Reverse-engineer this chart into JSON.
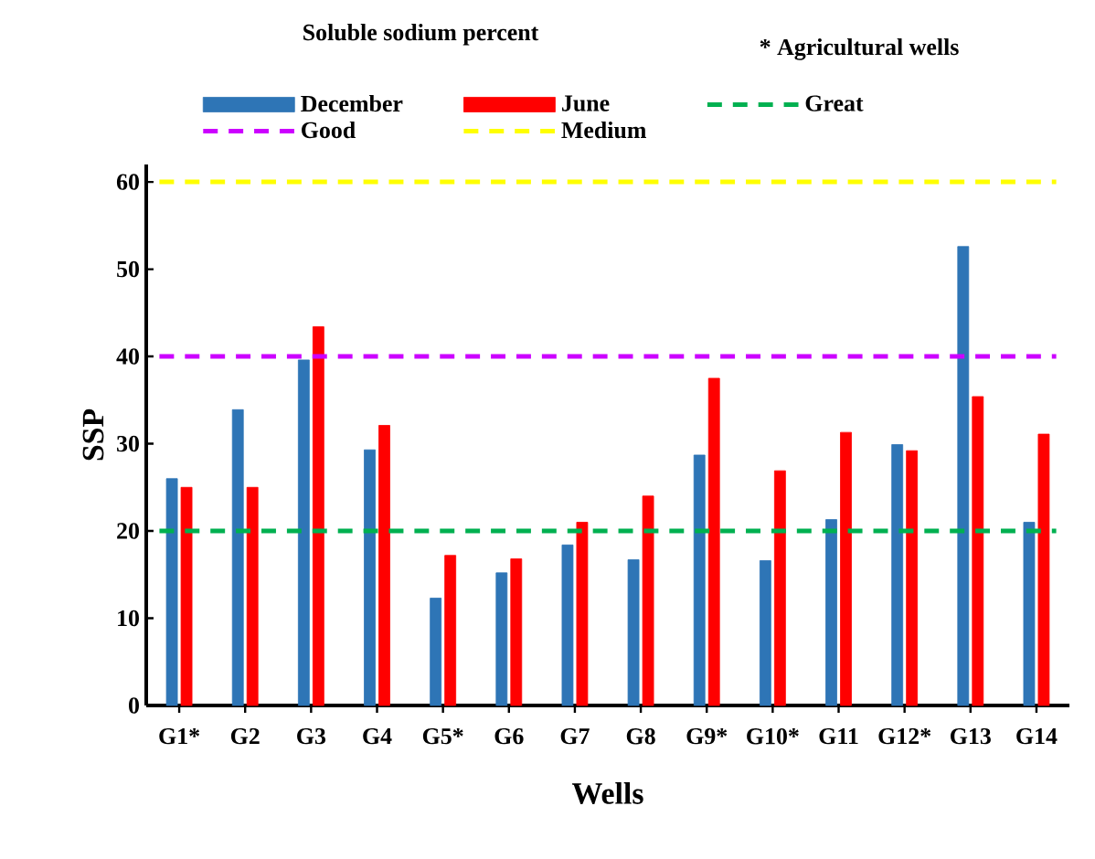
{
  "chart_data": {
    "type": "bar",
    "title": "Soluble sodium percent",
    "xlabel": "Wells",
    "ylabel": "SSP",
    "annotations": [
      "* Agricultural wells"
    ],
    "categories": [
      "G1*",
      "G2",
      "G3",
      "G4",
      "G5*",
      "G6",
      "G7",
      "G8",
      "G9*",
      "G10*",
      "G11",
      "G12*",
      "G13",
      "G14"
    ],
    "series": [
      {
        "name": "December",
        "color": "#2e75b6",
        "values": [
          26.0,
          33.9,
          39.6,
          29.3,
          12.3,
          15.2,
          18.4,
          16.7,
          28.7,
          16.6,
          21.3,
          29.9,
          52.6,
          21.0
        ]
      },
      {
        "name": "June",
        "color": "#ff0000",
        "values": [
          25.0,
          25.0,
          43.4,
          32.1,
          17.2,
          16.8,
          21.0,
          24.0,
          37.5,
          26.9,
          31.3,
          29.2,
          35.4,
          31.1
        ]
      }
    ],
    "ref_lines": [
      {
        "axis": "y",
        "value": 20,
        "label": "Great",
        "color": "#00b050",
        "line_style": "dashed"
      },
      {
        "axis": "y",
        "value": 40,
        "label": "Good",
        "color": "#cc00ff",
        "line_style": "dashed"
      },
      {
        "axis": "y",
        "value": 60,
        "label": "Medium",
        "color": "#ffff00",
        "line_style": "dashed"
      }
    ],
    "ylim": [
      0,
      62
    ],
    "yticks": [
      0,
      10,
      20,
      30,
      40,
      50,
      60
    ],
    "grid": false,
    "legend": "top"
  }
}
